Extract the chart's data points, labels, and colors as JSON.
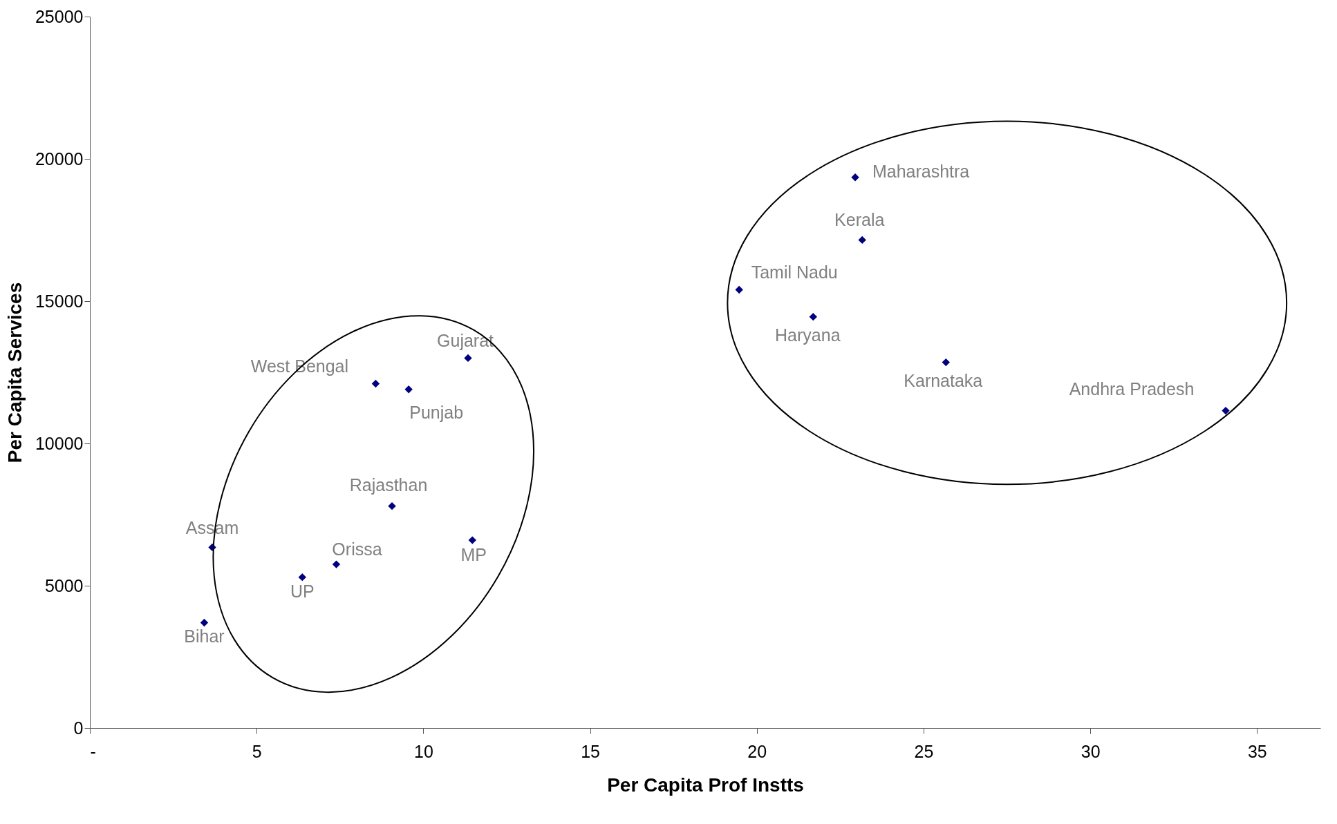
{
  "chart_data": {
    "type": "scatter",
    "xlabel": "Per Capita Prof Instts",
    "ylabel": "Per Capita Services",
    "xlim": [
      0,
      36.9
    ],
    "ylim": [
      0,
      25000
    ],
    "xticks": [
      {
        "value": 0,
        "label": "-"
      },
      5,
      10,
      15,
      20,
      25,
      30,
      35
    ],
    "yticks": [
      0,
      5000,
      10000,
      15000,
      20000,
      25000
    ],
    "grid": false,
    "marker": "diamond",
    "series": [
      {
        "color": "#000080",
        "x": [
          22.95,
          23.16,
          19.47,
          21.69,
          25.67,
          34.06,
          11.34,
          8.57,
          9.56,
          9.06,
          11.47,
          3.67,
          7.39,
          6.37,
          3.43
        ],
        "values": [
          19350,
          17150,
          15400,
          14450,
          12850,
          11150,
          13000,
          12100,
          11900,
          7800,
          6600,
          6350,
          5750,
          5300,
          3700
        ]
      }
    ],
    "annotations": [
      {
        "text": "Maharashtra",
        "x": 22.95,
        "y": 19350
      },
      {
        "text": "Kerala",
        "x": 23.16,
        "y": 17150
      },
      {
        "text": "Tamil Nadu",
        "x": 19.47,
        "y": 15400
      },
      {
        "text": "Haryana",
        "x": 21.69,
        "y": 14450
      },
      {
        "text": "Karnataka",
        "x": 25.67,
        "y": 12850
      },
      {
        "text": "Andhra Pradesh",
        "x": 34.06,
        "y": 11150
      },
      {
        "text": "Gujarat",
        "x": 11.34,
        "y": 13000
      },
      {
        "text": "West Bengal",
        "x": 8.57,
        "y": 12100
      },
      {
        "text": "Punjab",
        "x": 9.56,
        "y": 11900
      },
      {
        "text": "Rajasthan",
        "x": 9.06,
        "y": 7800
      },
      {
        "text": "MP",
        "x": 11.47,
        "y": 6600
      },
      {
        "text": "Assam",
        "x": 3.67,
        "y": 6350
      },
      {
        "text": "Orissa",
        "x": 7.39,
        "y": 5750
      },
      {
        "text": "UP",
        "x": 6.37,
        "y": 5300
      },
      {
        "text": "Bihar",
        "x": 3.43,
        "y": 3700
      }
    ]
  }
}
